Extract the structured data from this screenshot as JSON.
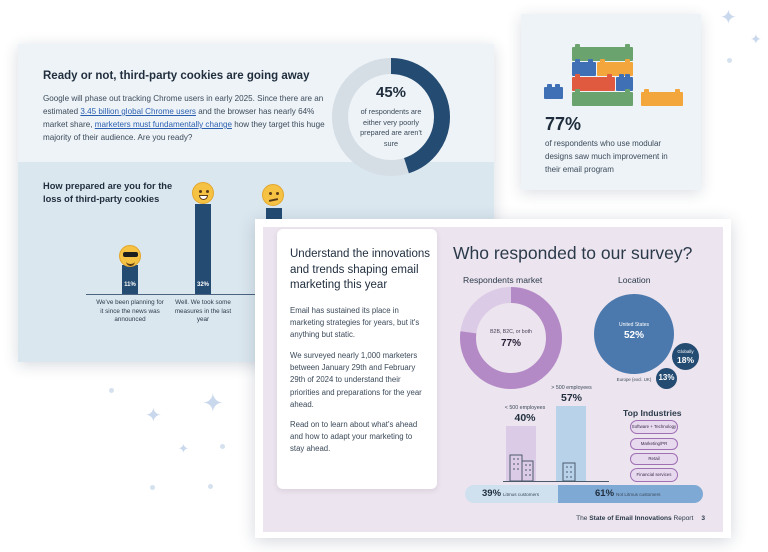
{
  "cookies": {
    "title": "Ready or not, third-party cookies are going away",
    "body_1": "Google will phase out tracking Chrome users in early 2025. Since there are an estimated ",
    "link_1": "3.45 billion global Chrome users",
    "body_2": " and the browser has nearly 64% market share, ",
    "link_2": "marketers must fundamentally change",
    "body_3": " how they target this huge majority of their audience. Are you ready?",
    "donut": {
      "value": 45,
      "pct_label": "45%",
      "caption": "of respondents are either very poorly prepared are aren't sure"
    },
    "question": "How prepared are you for the loss of third-party cookies",
    "bars": [
      {
        "value": 11,
        "label": "11%",
        "caption": "We've been planning for it since the news was announced",
        "emoji": "sunglasses-emoji-icon"
      },
      {
        "value": 32,
        "label": "32%",
        "caption": "Well. We took some measures in the last year",
        "emoji": "grinning-emoji-icon"
      },
      {
        "value": null,
        "label": "",
        "caption": "",
        "emoji": "confused-emoji-icon"
      }
    ]
  },
  "modular": {
    "pct_label": "77%",
    "caption": "of respondents who use modular designs saw much improvement in their email program"
  },
  "survey": {
    "intro_title": "Understand the innovations and trends shaping email marketing this year",
    "paragraphs": [
      "Email has sustained its place in marketing strategies for years, but it's anything but static.",
      "We surveyed nearly 1,000 marketers between January 29th and February 29th of 2024 to understand their priorities and preparations for the year ahead.",
      "Read on to learn about what's ahead and how to adapt your marketing to stay ahead."
    ],
    "heading": "Who responded to our survey?",
    "market": {
      "title": "Respondents market",
      "caption": "B2B, B2C, or both",
      "value": 77,
      "pct_label": "77%"
    },
    "location": {
      "title": "Location",
      "regions": [
        {
          "name": "United States",
          "value": 52,
          "pct_label": "52%"
        },
        {
          "name": "Globally",
          "value": 18,
          "pct_label": "18%"
        },
        {
          "name": "Europe (excl. UK)",
          "value": 13,
          "pct_label": "13%"
        }
      ]
    },
    "employees": [
      {
        "label": "< 500 employees",
        "value": 40,
        "pct_label": "40%"
      },
      {
        "label": "> 500 employees",
        "value": 57,
        "pct_label": "57%"
      }
    ],
    "industries": {
      "title": "Top Industries",
      "items": [
        "Software + Technology",
        "Marketing/PR",
        "Retail",
        "Financial services"
      ]
    },
    "litmus": [
      {
        "value": 39,
        "pct_label": "39%",
        "label": "Litmus customers"
      },
      {
        "value": 61,
        "pct_label": "61%",
        "label": "Not Litmus customers"
      }
    ],
    "footer": {
      "prefix": "The ",
      "bold": "State of Email Innovations",
      "suffix": " Report",
      "page": "3"
    }
  },
  "colors": {
    "navy": "#244b72",
    "donut_track": "#d5dde5",
    "purple": "#b48ac6",
    "purple_light": "#dccbe6",
    "blue": "#4b79ad",
    "light_blue": "#b7d2e9"
  }
}
